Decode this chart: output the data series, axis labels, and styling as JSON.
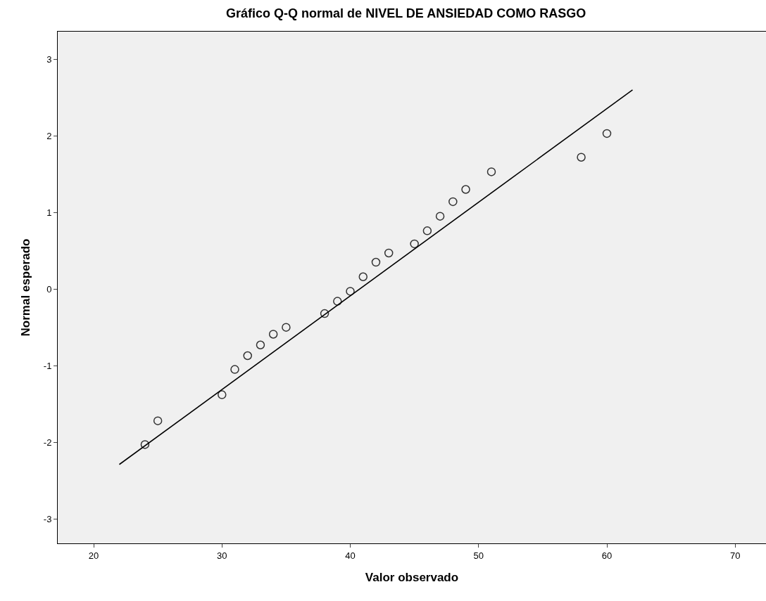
{
  "chart_data": {
    "type": "scatter",
    "title": "Gráfico Q-Q normal de NIVEL DE ANSIEDAD COMO RASGO",
    "xlabel": "Valor observado",
    "ylabel": "Normal esperado",
    "xlim": [
      17.2,
      72.4
    ],
    "xticks": [
      20,
      30,
      40,
      50,
      60,
      70
    ],
    "ylim": [
      -3.32,
      3.36
    ],
    "yticks": [
      -3,
      -2,
      -1,
      0,
      1,
      2,
      3
    ],
    "grid": false,
    "legend": false,
    "series": [
      {
        "marker": "circle",
        "color": "#333333",
        "x": [
          24,
          25,
          30,
          31,
          32,
          33,
          34,
          35,
          38,
          39,
          40,
          41,
          42,
          43,
          45,
          46,
          47,
          48,
          49,
          51,
          58,
          60
        ],
        "values": [
          -2.03,
          -1.72,
          -1.38,
          -1.05,
          -0.87,
          -0.73,
          -0.59,
          -0.5,
          -0.32,
          -0.16,
          -0.03,
          0.16,
          0.35,
          0.47,
          0.59,
          0.76,
          0.95,
          1.14,
          1.3,
          1.53,
          1.72,
          2.03
        ]
      },
      {
        "type": "line",
        "marker": "none",
        "color": "#000000",
        "x": [
          22,
          62
        ],
        "values": [
          -2.29,
          2.6
        ]
      }
    ]
  }
}
